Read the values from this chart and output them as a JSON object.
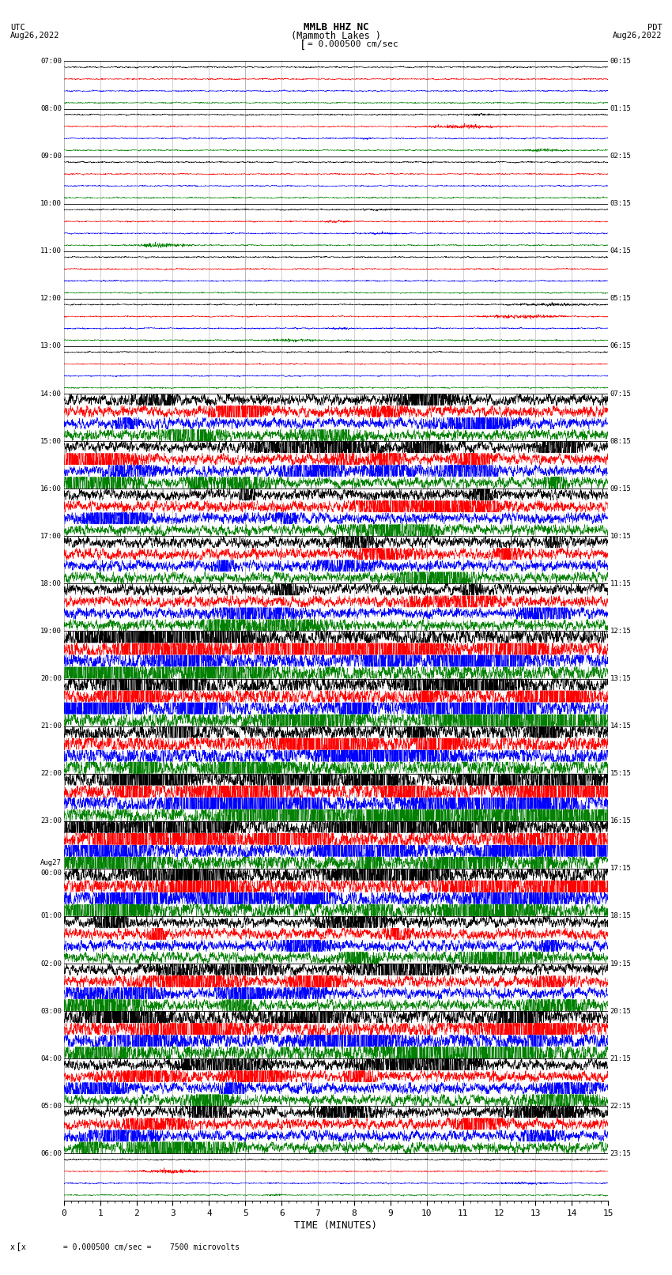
{
  "title_line1": "MMLB HHZ NC",
  "title_line2": "(Mammoth Lakes )",
  "scale_label": "= 0.000500 cm/sec",
  "bottom_label": "x        = 0.000500 cm/sec =    7500 microvolts",
  "xlabel": "TIME (MINUTES)",
  "utc_label": "UTC",
  "utc_date": "Aug26,2022",
  "pdt_label": "PDT",
  "pdt_date": "Aug26,2022",
  "fig_width": 8.5,
  "fig_height": 16.13,
  "dpi": 100,
  "bg_color": "#ffffff",
  "trace_colors": [
    "black",
    "red",
    "blue",
    "green"
  ],
  "grid_color": "#999999",
  "text_color": "black",
  "left_times_utc": [
    "07:00",
    "08:00",
    "09:00",
    "10:00",
    "11:00",
    "12:00",
    "13:00",
    "14:00",
    "15:00",
    "16:00",
    "17:00",
    "18:00",
    "19:00",
    "20:00",
    "21:00",
    "22:00",
    "23:00",
    "Aug27\n00:00",
    "01:00",
    "02:00",
    "03:00",
    "04:00",
    "05:00",
    "06:00"
  ],
  "right_times_pdt": [
    "00:15",
    "01:15",
    "02:15",
    "03:15",
    "04:15",
    "05:15",
    "06:15",
    "07:15",
    "08:15",
    "09:15",
    "10:15",
    "11:15",
    "12:15",
    "13:15",
    "14:15",
    "15:15",
    "16:15",
    "17:15",
    "18:15",
    "19:15",
    "20:15",
    "21:15",
    "22:15",
    "23:15"
  ],
  "num_rows": 24,
  "traces_per_row": 4,
  "minutes": 15,
  "noise_seed": 42,
  "amplitude_scale": 0.35,
  "active_rows_high": [
    12,
    13,
    14,
    15,
    16,
    17,
    20
  ],
  "active_rows_medium": [
    7,
    8,
    9,
    10,
    11,
    18,
    19,
    21,
    22
  ]
}
